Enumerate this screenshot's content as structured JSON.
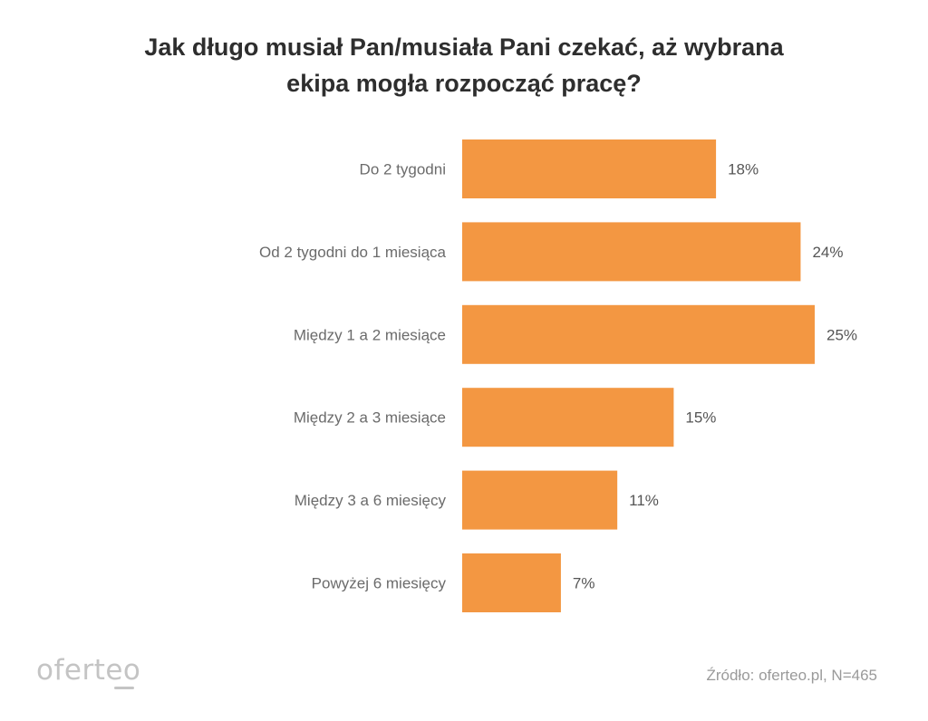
{
  "title": {
    "line1": "Jak długo musiał Pan/musiała Pani czekać, aż wybrana",
    "line2": "ekipa mogła rozpocząć pracę?"
  },
  "colors": {
    "bar": "#F39742",
    "title": "#2e2e2e",
    "category_label": "#6b6b6b",
    "value_label": "#555555",
    "footer": "#9a9a9a"
  },
  "chart_data": {
    "type": "bar",
    "orientation": "horizontal",
    "title": "Jak długo musiał Pan/musiała Pani czekać, aż wybrana ekipa mogła rozpocząć pracę?",
    "categories": [
      "Do 2 tygodni",
      "Od 2 tygodni do 1 miesiąca",
      "Między 1 a 2 miesiące",
      "Między 2 a 3 miesiące",
      "Między 3 a 6 miesięcy",
      "Powyżej 6 miesięcy"
    ],
    "values": [
      18,
      24,
      25,
      15,
      11,
      7
    ],
    "value_labels": [
      "18%",
      "24%",
      "25%",
      "15%",
      "11%",
      "7%"
    ],
    "unit": "%",
    "xlim": [
      0,
      25
    ],
    "grid": false,
    "legend": "none"
  },
  "footer": {
    "logo": "oferteo",
    "source": "Źródło: oferteo.pl, N=465"
  }
}
